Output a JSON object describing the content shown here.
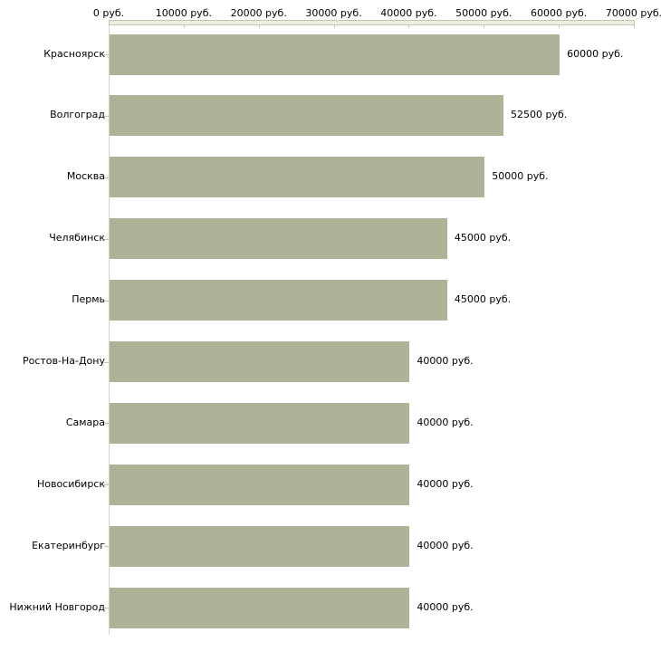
{
  "chart_data": {
    "type": "bar",
    "orientation": "horizontal",
    "title": "",
    "categories": [
      "Красноярск",
      "Волгоград",
      "Москва",
      "Челябинск",
      "Пермь",
      "Ростов-На-Дону",
      "Самара",
      "Новосибирск",
      "Екатеринбург",
      "Нижний Новгород"
    ],
    "values": [
      60000,
      52500,
      50000,
      45000,
      45000,
      40000,
      40000,
      40000,
      40000,
      40000
    ],
    "value_labels": [
      "60000 руб.",
      "52500 руб.",
      "50000 руб.",
      "45000 руб.",
      "45000 руб.",
      "40000 руб.",
      "40000 руб.",
      "40000 руб.",
      "40000 руб.",
      "40000 руб."
    ],
    "x_axis": {
      "position": "top",
      "tick_values": [
        0,
        10000,
        20000,
        30000,
        40000,
        50000,
        60000,
        70000
      ],
      "tick_labels": [
        "0 руб.",
        "10000 руб.",
        "20000 руб.",
        "30000 руб.",
        "40000 руб.",
        "50000 руб.",
        "60000 руб.",
        "70000 руб."
      ],
      "xlim": [
        0,
        70000
      ]
    },
    "grid": false,
    "legend": false,
    "colors": {
      "bar": "#adb397",
      "axis_line": "#c6c6ae",
      "axis_fill": "#ecece0",
      "y_axis_line": "#d2d2be",
      "text": "#000000",
      "background": "#ffffff"
    }
  }
}
